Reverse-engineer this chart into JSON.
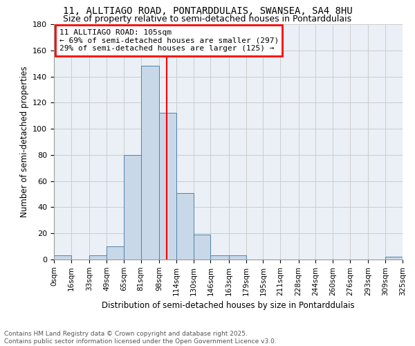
{
  "title1": "11, ALLTIAGO ROAD, PONTARDDULAIS, SWANSEA, SA4 8HU",
  "title2": "Size of property relative to semi-detached houses in Pontarddulais",
  "xlabel": "Distribution of semi-detached houses by size in Pontarddulais",
  "ylabel": "Number of semi-detached properties",
  "bin_labels": [
    "0sqm",
    "16sqm",
    "33sqm",
    "49sqm",
    "65sqm",
    "81sqm",
    "98sqm",
    "114sqm",
    "130sqm",
    "146sqm",
    "163sqm",
    "179sqm",
    "195sqm",
    "211sqm",
    "228sqm",
    "244sqm",
    "260sqm",
    "276sqm",
    "293sqm",
    "309sqm",
    "325sqm"
  ],
  "bin_edges": [
    0,
    16,
    33,
    49,
    65,
    81,
    98,
    114,
    130,
    146,
    163,
    179,
    195,
    211,
    228,
    244,
    260,
    276,
    293,
    309,
    325
  ],
  "heights": [
    3,
    0,
    3,
    10,
    80,
    148,
    112,
    51,
    19,
    3,
    3,
    0,
    0,
    0,
    0,
    0,
    0,
    0,
    0,
    2
  ],
  "bar_color": "#c8d8e8",
  "bar_edge_color": "#5080a8",
  "vline_x": 105,
  "vline_color": "red",
  "annotation_text": "11 ALLTIAGO ROAD: 105sqm\n← 69% of semi-detached houses are smaller (297)\n29% of semi-detached houses are larger (125) →",
  "annotation_box_color": "white",
  "annotation_box_edge": "red",
  "ylim": [
    0,
    180
  ],
  "yticks": [
    0,
    20,
    40,
    60,
    80,
    100,
    120,
    140,
    160,
    180
  ],
  "bg_color": "#eaf0f6",
  "footer_text": "Contains HM Land Registry data © Crown copyright and database right 2025.\nContains public sector information licensed under the Open Government Licence v3.0.",
  "title_fontsize": 10,
  "subtitle_fontsize": 9
}
